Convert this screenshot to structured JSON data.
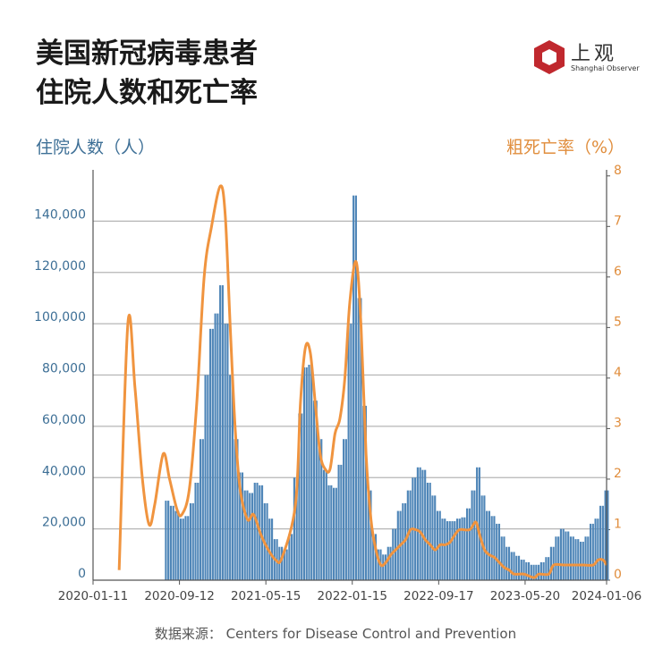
{
  "title_lines": [
    "美国新冠病毒患者",
    "住院人数和死亡率"
  ],
  "logo": {
    "cn": "上观",
    "en": "Shanghai Observer",
    "color": "#c0282e"
  },
  "source": "数据来源：  Centers for Disease Control and Prevention",
  "chart_data": {
    "type": "bar+line",
    "left_axis": {
      "label": "住院人数（人）",
      "ylim": [
        0,
        160000
      ],
      "ticks": [
        0,
        20000,
        40000,
        60000,
        80000,
        100000,
        120000,
        140000
      ],
      "tick_labels": [
        "0",
        "20,000",
        "40,000",
        "60,000",
        "80,000",
        "100,000",
        "120,000",
        "140,000"
      ],
      "color": "#3d6f96"
    },
    "right_axis": {
      "label": "粗死亡率（%）",
      "ylim": [
        0,
        8.12
      ],
      "ticks": [
        0,
        1,
        2,
        3,
        4,
        5,
        6,
        7,
        8
      ],
      "tick_labels": [
        "0",
        "1",
        "2",
        "3",
        "4",
        "5",
        "6",
        "7",
        "8"
      ],
      "color": "#e08d3c"
    },
    "x_axis": {
      "range": [
        "2020-01-11",
        "2024-01-06"
      ],
      "ticks": [
        "2020-01-11",
        "2020-09-12",
        "2021-05-15",
        "2022-01-15",
        "2022-09-17",
        "2023-05-20",
        "2024-01-06"
      ]
    },
    "grid": "horizontal",
    "bar_color": "#4f86b8",
    "line_color": "#f0943f",
    "bars": [
      [
        "2020-08-01",
        31000
      ],
      [
        "2020-08-15",
        29000
      ],
      [
        "2020-08-29",
        27000
      ],
      [
        "2020-09-12",
        24000
      ],
      [
        "2020-09-26",
        25000
      ],
      [
        "2020-10-10",
        30000
      ],
      [
        "2020-10-24",
        38000
      ],
      [
        "2020-11-07",
        55000
      ],
      [
        "2020-11-21",
        80000
      ],
      [
        "2020-12-05",
        98000
      ],
      [
        "2020-12-19",
        104000
      ],
      [
        "2021-01-02",
        115000
      ],
      [
        "2021-01-16",
        100000
      ],
      [
        "2021-01-30",
        80000
      ],
      [
        "2021-02-13",
        55000
      ],
      [
        "2021-02-27",
        42000
      ],
      [
        "2021-03-13",
        35000
      ],
      [
        "2021-03-27",
        34000
      ],
      [
        "2021-04-10",
        38000
      ],
      [
        "2021-04-24",
        37000
      ],
      [
        "2021-05-08",
        30000
      ],
      [
        "2021-05-22",
        24000
      ],
      [
        "2021-06-05",
        16000
      ],
      [
        "2021-06-19",
        13000
      ],
      [
        "2021-07-03",
        12000
      ],
      [
        "2021-07-17",
        18000
      ],
      [
        "2021-07-31",
        40000
      ],
      [
        "2021-08-14",
        65000
      ],
      [
        "2021-08-28",
        83000
      ],
      [
        "2021-09-11",
        84000
      ],
      [
        "2021-09-25",
        70000
      ],
      [
        "2021-10-09",
        55000
      ],
      [
        "2021-10-23",
        43000
      ],
      [
        "2021-11-06",
        37000
      ],
      [
        "2021-11-20",
        36000
      ],
      [
        "2021-12-04",
        45000
      ],
      [
        "2021-12-18",
        55000
      ],
      [
        "2022-01-01",
        100000
      ],
      [
        "2022-01-15",
        150000
      ],
      [
        "2022-01-29",
        110000
      ],
      [
        "2022-02-12",
        68000
      ],
      [
        "2022-02-26",
        35000
      ],
      [
        "2022-03-12",
        18000
      ],
      [
        "2022-03-26",
        12000
      ],
      [
        "2022-04-09",
        10000
      ],
      [
        "2022-04-23",
        13000
      ],
      [
        "2022-05-07",
        20000
      ],
      [
        "2022-05-21",
        27000
      ],
      [
        "2022-06-04",
        30000
      ],
      [
        "2022-06-18",
        35000
      ],
      [
        "2022-07-02",
        40000
      ],
      [
        "2022-07-16",
        44000
      ],
      [
        "2022-07-30",
        43000
      ],
      [
        "2022-08-13",
        38000
      ],
      [
        "2022-08-27",
        33000
      ],
      [
        "2022-09-10",
        27000
      ],
      [
        "2022-09-24",
        24000
      ],
      [
        "2022-10-08",
        23000
      ],
      [
        "2022-10-22",
        23000
      ],
      [
        "2022-11-05",
        24000
      ],
      [
        "2022-11-19",
        24500
      ],
      [
        "2022-12-03",
        28000
      ],
      [
        "2022-12-17",
        35000
      ],
      [
        "2022-12-31",
        44000
      ],
      [
        "2023-01-14",
        33000
      ],
      [
        "2023-01-28",
        27000
      ],
      [
        "2023-02-11",
        25000
      ],
      [
        "2023-02-25",
        22000
      ],
      [
        "2023-03-11",
        17000
      ],
      [
        "2023-03-25",
        13000
      ],
      [
        "2023-04-08",
        11000
      ],
      [
        "2023-04-22",
        9500
      ],
      [
        "2023-05-06",
        8000
      ],
      [
        "2023-05-20",
        7000
      ],
      [
        "2023-06-03",
        6000
      ],
      [
        "2023-06-17",
        6000
      ],
      [
        "2023-07-01",
        7000
      ],
      [
        "2023-07-15",
        9000
      ],
      [
        "2023-07-29",
        13000
      ],
      [
        "2023-08-12",
        17000
      ],
      [
        "2023-08-26",
        20000
      ],
      [
        "2023-09-09",
        19000
      ],
      [
        "2023-09-23",
        17000
      ],
      [
        "2023-10-07",
        16000
      ],
      [
        "2023-10-21",
        15000
      ],
      [
        "2023-11-04",
        17000
      ],
      [
        "2023-11-18",
        22000
      ],
      [
        "2023-12-02",
        24000
      ],
      [
        "2023-12-16",
        29000
      ],
      [
        "2023-12-30",
        35000
      ]
    ],
    "line": [
      [
        "2020-03-25",
        0.2
      ],
      [
        "2020-04-19",
        5.1
      ],
      [
        "2020-05-09",
        3.8
      ],
      [
        "2020-05-30",
        2.0
      ],
      [
        "2020-06-18",
        1.1
      ],
      [
        "2020-07-04",
        1.5
      ],
      [
        "2020-07-28",
        2.5
      ],
      [
        "2020-08-15",
        2.0
      ],
      [
        "2020-09-05",
        1.4
      ],
      [
        "2020-09-19",
        1.3
      ],
      [
        "2020-10-10",
        1.8
      ],
      [
        "2020-10-31",
        3.5
      ],
      [
        "2020-11-21",
        6.0
      ],
      [
        "2020-12-12",
        7.0
      ],
      [
        "2021-01-06",
        7.8
      ],
      [
        "2021-01-20",
        7.2
      ],
      [
        "2021-02-03",
        5.0
      ],
      [
        "2021-02-17",
        3.0
      ],
      [
        "2021-03-03",
        1.8
      ],
      [
        "2021-03-24",
        1.2
      ],
      [
        "2021-04-10",
        1.3
      ],
      [
        "2021-05-01",
        0.9
      ],
      [
        "2021-05-22",
        0.6
      ],
      [
        "2021-06-12",
        0.4
      ],
      [
        "2021-06-30",
        0.45
      ],
      [
        "2021-08-07",
        1.5
      ],
      [
        "2021-08-21",
        3.5
      ],
      [
        "2021-09-04",
        4.6
      ],
      [
        "2021-09-18",
        4.5
      ],
      [
        "2021-10-02",
        3.5
      ],
      [
        "2021-10-16",
        2.5
      ],
      [
        "2021-10-30",
        2.2
      ],
      [
        "2021-11-13",
        2.2
      ],
      [
        "2021-11-27",
        2.9
      ],
      [
        "2021-12-11",
        3.2
      ],
      [
        "2021-12-25",
        4.0
      ],
      [
        "2022-01-08",
        5.5
      ],
      [
        "2022-01-26",
        6.3
      ],
      [
        "2022-02-09",
        5.0
      ],
      [
        "2022-02-23",
        2.5
      ],
      [
        "2022-03-09",
        1.2
      ],
      [
        "2022-03-23",
        0.6
      ],
      [
        "2022-04-06",
        0.3
      ],
      [
        "2022-04-20",
        0.35
      ],
      [
        "2022-05-04",
        0.5
      ],
      [
        "2022-05-18",
        0.6
      ],
      [
        "2022-06-01",
        0.7
      ],
      [
        "2022-06-15",
        0.8
      ],
      [
        "2022-06-29",
        1.0
      ],
      [
        "2022-07-13",
        1.0
      ],
      [
        "2022-07-27",
        0.95
      ],
      [
        "2022-08-10",
        0.8
      ],
      [
        "2022-08-24",
        0.7
      ],
      [
        "2022-09-07",
        0.6
      ],
      [
        "2022-09-21",
        0.7
      ],
      [
        "2022-10-05",
        0.7
      ],
      [
        "2022-10-19",
        0.75
      ],
      [
        "2022-11-02",
        0.9
      ],
      [
        "2022-11-16",
        1.0
      ],
      [
        "2022-12-14",
        1.0
      ],
      [
        "2022-12-31",
        1.15
      ],
      [
        "2023-01-11",
        0.9
      ],
      [
        "2023-01-25",
        0.6
      ],
      [
        "2023-02-08",
        0.5
      ],
      [
        "2023-02-22",
        0.45
      ],
      [
        "2023-03-08",
        0.35
      ],
      [
        "2023-03-22",
        0.25
      ],
      [
        "2023-04-05",
        0.2
      ],
      [
        "2023-04-19",
        0.12
      ],
      [
        "2023-05-17",
        0.12
      ],
      [
        "2023-06-14",
        0.05
      ],
      [
        "2023-06-28",
        0.12
      ],
      [
        "2023-07-26",
        0.12
      ],
      [
        "2023-08-09",
        0.3
      ],
      [
        "2023-09-06",
        0.3
      ],
      [
        "2023-10-04",
        0.3
      ],
      [
        "2023-11-01",
        0.3
      ],
      [
        "2023-11-29",
        0.3
      ],
      [
        "2023-12-13",
        0.4
      ],
      [
        "2023-12-27",
        0.4
      ],
      [
        "2024-01-06",
        0.3
      ]
    ]
  }
}
